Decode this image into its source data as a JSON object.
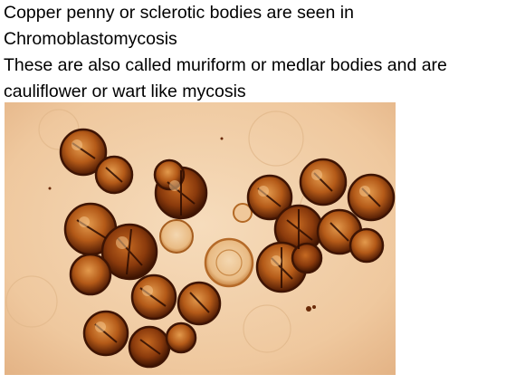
{
  "slide": {
    "lines": [
      "Copper penny or sclerotic bodies are seen in",
      "Chromoblastomycosis",
      "These are also called muriform or medlar bodies and are",
      "cauliflower or wart like mycosis"
    ]
  },
  "image": {
    "background_color": "#f0c9a0",
    "cell_edge_color": "#5a2005",
    "cell_fill_color": "#c0621a",
    "pale_cell_color": "#d98a3a"
  }
}
